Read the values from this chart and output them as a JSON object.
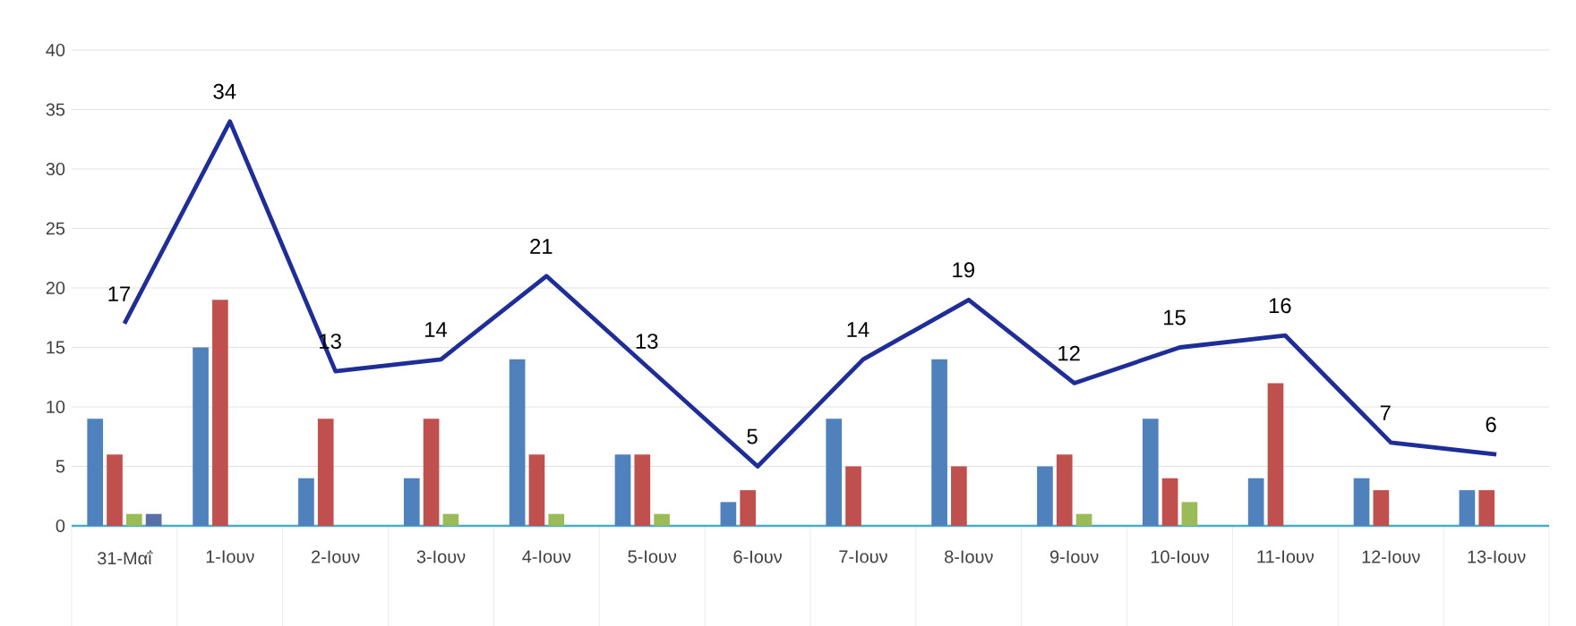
{
  "chart_data": {
    "type": "bar",
    "categories": [
      "31-Μαΐ",
      "1-Ιουν",
      "2-Ιουν",
      "3-Ιουν",
      "4-Ιουν",
      "5-Ιουν",
      "6-Ιουν",
      "7-Ιουν",
      "8-Ιουν",
      "9-Ιουν",
      "10-Ιουν",
      "11-Ιουν",
      "12-Ιουν",
      "13-Ιουν"
    ],
    "series": [
      {
        "color": "#4f81bd",
        "values": [
          9,
          15,
          4,
          4,
          14,
          6,
          2,
          9,
          14,
          5,
          9,
          4,
          4,
          3
        ]
      },
      {
        "color": "#c0504d",
        "values": [
          6,
          19,
          9,
          9,
          6,
          6,
          3,
          5,
          5,
          6,
          4,
          12,
          3,
          3
        ]
      },
      {
        "color": "#9bbb59",
        "values": [
          1,
          0,
          0,
          1,
          1,
          1,
          0,
          0,
          0,
          1,
          2,
          0,
          0,
          0
        ]
      },
      {
        "color": "#5a6fa8",
        "values": [
          1,
          0,
          0,
          0,
          0,
          0,
          0,
          0,
          0,
          0,
          0,
          0,
          0,
          0
        ]
      },
      {
        "type": "line",
        "color": "#1f2d96",
        "values": [
          17,
          34,
          13,
          14,
          21,
          13,
          5,
          14,
          19,
          12,
          15,
          16,
          7,
          6
        ],
        "data_labels": true,
        "marker": "none",
        "line_style": "solid"
      }
    ],
    "ylim": [
      0,
      40
    ],
    "yticks": [
      0,
      5,
      10,
      15,
      20,
      25,
      30,
      35,
      40
    ],
    "grid": "y"
  }
}
